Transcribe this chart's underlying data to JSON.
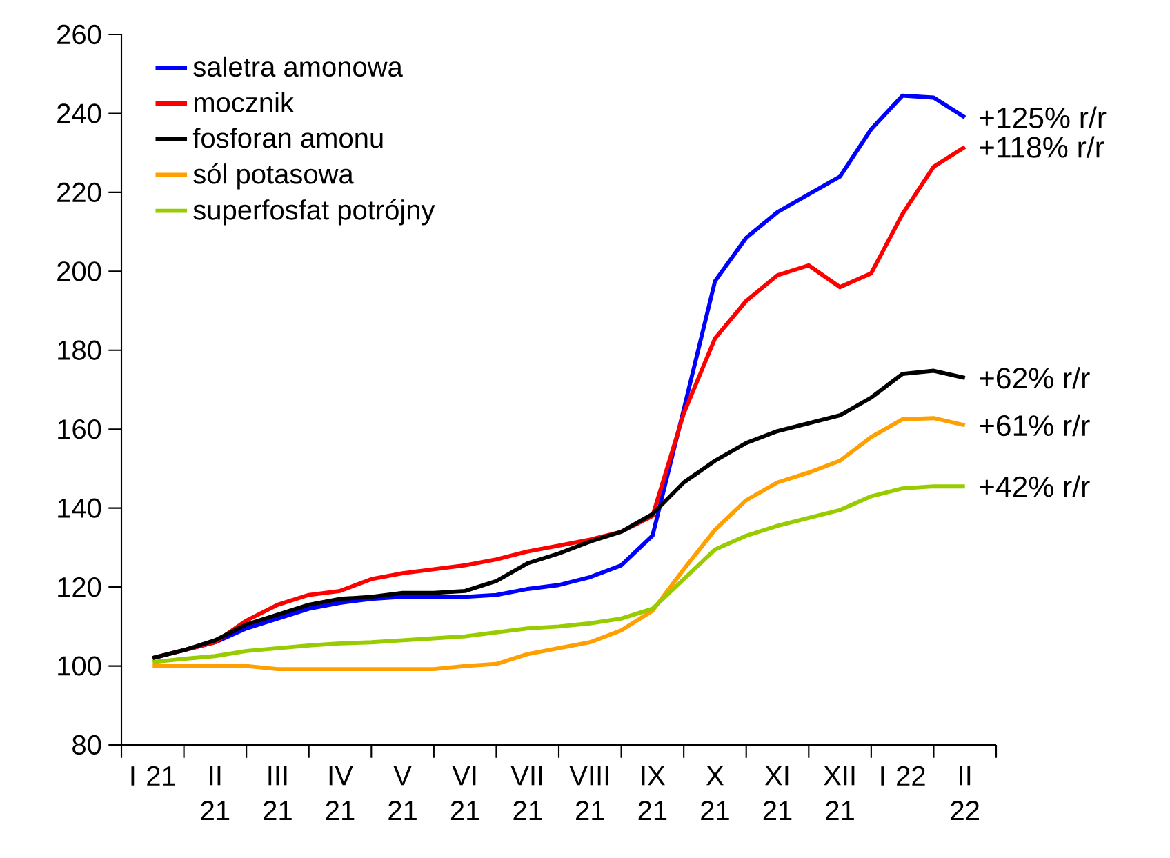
{
  "chart_data": {
    "type": "line",
    "categories": [
      "I 21",
      null,
      "II 21",
      null,
      "III 21",
      null,
      "IV 21",
      null,
      "V 21",
      null,
      "VI 21",
      null,
      "VII 21",
      null,
      "VIII 21",
      null,
      "IX 21",
      null,
      "X 21",
      null,
      "XI 21",
      null,
      "XII 21",
      null,
      "I 22",
      null,
      "II 22"
    ],
    "ylim": [
      80,
      260
    ],
    "yticks": [
      80,
      100,
      120,
      140,
      160,
      180,
      200,
      220,
      240,
      260
    ],
    "grid": false,
    "legend": "top left",
    "marker": "none",
    "line_style": "solid",
    "series": [
      {
        "name": "saletra amonowa",
        "color": "#0000ff",
        "values": [
          102,
          104,
          106,
          109.5,
          112,
          114.5,
          116,
          117,
          117.5,
          117.5,
          117.5,
          118,
          119.5,
          120.5,
          122.5,
          125.5,
          133,
          165,
          197.5,
          208.5,
          215,
          219.5,
          224,
          236,
          244.5,
          244,
          239
        ]
      },
      {
        "name": "mocznik",
        "color": "#ff0000",
        "values": [
          102,
          104,
          106,
          111.5,
          115.5,
          118,
          119,
          122,
          123.5,
          124.5,
          125.5,
          127,
          129,
          130.5,
          132,
          134,
          138,
          164,
          183,
          192.5,
          199,
          201.5,
          196,
          199.5,
          214.5,
          226.5,
          231.5
        ]
      },
      {
        "name": "fosforan amonu",
        "color": "#000000",
        "values": [
          102,
          104,
          106.5,
          110.5,
          113,
          115.5,
          117,
          117.5,
          118.5,
          118.5,
          119,
          121.5,
          126,
          128.5,
          131.5,
          134,
          138.5,
          146.5,
          152,
          156.5,
          159.5,
          161.5,
          163.5,
          168,
          174,
          174.8,
          173
        ]
      },
      {
        "name": "sól potasowa",
        "color": "#ffa000",
        "values": [
          100,
          100,
          100,
          100,
          99.2,
          99.2,
          99.2,
          99.2,
          99.2,
          99.2,
          100,
          100.5,
          103,
          104.5,
          106,
          109,
          114,
          124.5,
          134.5,
          142,
          146.5,
          149,
          152,
          158,
          162.5,
          162.8,
          161
        ]
      },
      {
        "name": "superfosfat potrójny",
        "color": "#99cc00",
        "values": [
          101,
          101.8,
          102.5,
          103.8,
          104.5,
          105.2,
          105.7,
          106,
          106.5,
          107,
          107.5,
          108.5,
          109.5,
          110,
          110.8,
          112,
          114.5,
          122,
          129.5,
          133,
          135.5,
          137.5,
          139.5,
          143,
          145,
          145.5,
          145.5
        ]
      }
    ],
    "annotations": [
      "+125% r/r",
      "+118% r/r",
      "+62% r/r",
      "+61% r/r",
      "+42% r/r"
    ]
  }
}
